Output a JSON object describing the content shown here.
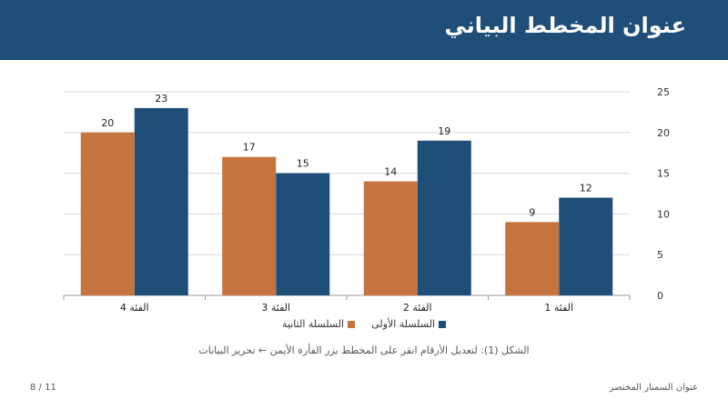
{
  "slide": {
    "title": "عنوان المخطط البياني",
    "caption": "الشكل (1): لتعديل الأرقام انقر على المخطط بزر الفأرة الأيمن ← تحرير البيانات",
    "footer_title": "عنوان السمنار المختصر",
    "page_number": "8 / 11"
  },
  "colors": {
    "header": "#1F4E79",
    "series1": "#1F4E79",
    "series2": "#C5733F"
  },
  "chart_data": {
    "type": "bar",
    "categories": [
      "الفئة 1",
      "الفئة 2",
      "الفئة 3",
      "الفئة 4"
    ],
    "series": [
      {
        "name": "السلسلة الأولى",
        "values": [
          12,
          19,
          15,
          23
        ]
      },
      {
        "name": "السلسلة الثانية",
        "values": [
          9,
          14,
          17,
          20
        ]
      }
    ],
    "yticks": [
      "0",
      "5",
      "10",
      "15",
      "20",
      "25"
    ],
    "ylim": [
      0,
      25
    ],
    "grid": true,
    "data_labels": true,
    "legend_position": "bottom",
    "y_axis_side": "right",
    "category_order": "right-to-left"
  }
}
